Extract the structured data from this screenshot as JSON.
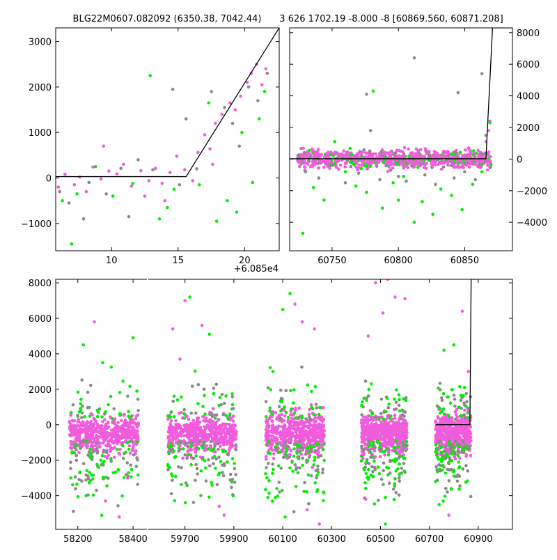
{
  "figure": {
    "top_left_title": "BLG22M0607.082092 (6350.38, 7042.44)",
    "top_right_title": "3 626 1702.19 -8.000 -8 [60869.560, 60871.208]",
    "x_offset_label": "+6.085e4"
  },
  "colors": {
    "magenta": "#f05cdc",
    "green": "#00ee00",
    "gray": "#888888",
    "model": "#000000"
  },
  "chart_data": [
    {
      "type": "scatter",
      "panel": "top-left zoom",
      "title": "BLG22M0607.082092 (6350.38, 7042.44)",
      "x_offset": 60850,
      "xlim": [
        5.8,
        22.6
      ],
      "ylim": [
        -1600,
        3300
      ],
      "xticks": [
        10,
        15,
        20
      ],
      "yticks": [
        -1000,
        0,
        1000,
        2000,
        3000
      ],
      "xtick_labels": [
        "10",
        "15",
        "20"
      ],
      "ytick_labels": [
        "−1000",
        "0",
        "1000",
        "2000",
        "3000"
      ],
      "model": {
        "x": [
          5.8,
          15.6,
          22.6
        ],
        "y": [
          30,
          30,
          3300
        ]
      },
      "series": [
        {
          "color": "magenta",
          "points": [
            [
              6.0,
              -200
            ],
            [
              6.5,
              80
            ],
            [
              7.2,
              -150
            ],
            [
              7.6,
              20
            ],
            [
              8.1,
              -300
            ],
            [
              8.6,
              240
            ],
            [
              9.2,
              -20
            ],
            [
              9.8,
              150
            ],
            [
              10.4,
              90
            ],
            [
              10.9,
              300
            ],
            [
              11.5,
              -180
            ],
            [
              12.2,
              160
            ],
            [
              12.8,
              -60
            ],
            [
              13.3,
              210
            ],
            [
              13.8,
              -120
            ],
            [
              14.4,
              120
            ],
            [
              14.9,
              480
            ],
            [
              15.5,
              180
            ],
            [
              16.1,
              -60
            ],
            [
              16.5,
              560
            ],
            [
              17.0,
              950
            ],
            [
              17.4,
              640
            ],
            [
              17.8,
              1200
            ],
            [
              18.3,
              1400
            ],
            [
              18.9,
              1650
            ],
            [
              19.3,
              1500
            ],
            [
              19.7,
              1800
            ],
            [
              20.2,
              2100
            ],
            [
              20.5,
              2300
            ],
            [
              20.9,
              2500
            ],
            [
              21.3,
              2050
            ],
            [
              21.6,
              2400
            ],
            [
              9.4,
              700
            ],
            [
              12.5,
              -400
            ],
            [
              14.0,
              -500
            ],
            [
              17.6,
              300
            ]
          ]
        },
        {
          "color": "green",
          "points": [
            [
              6.3,
              -500
            ],
            [
              7.4,
              -350
            ],
            [
              8.8,
              250
            ],
            [
              10.1,
              -400
            ],
            [
              11.6,
              -120
            ],
            [
              12.9,
              2250
            ],
            [
              13.6,
              -900
            ],
            [
              14.2,
              -650
            ],
            [
              14.7,
              -250
            ],
            [
              16.6,
              -150
            ],
            [
              17.3,
              1650
            ],
            [
              17.9,
              -950
            ],
            [
              18.7,
              -500
            ],
            [
              19.4,
              -750
            ],
            [
              19.8,
              1000
            ],
            [
              20.6,
              -100
            ],
            [
              21.1,
              1300
            ],
            [
              21.5,
              1900
            ],
            [
              7.0,
              -1450
            ]
          ]
        },
        {
          "color": "gray",
          "points": [
            [
              6.1,
              -300
            ],
            [
              6.8,
              -550
            ],
            [
              7.9,
              -900
            ],
            [
              8.3,
              -100
            ],
            [
              9.6,
              -350
            ],
            [
              10.7,
              210
            ],
            [
              11.3,
              -850
            ],
            [
              12.0,
              400
            ],
            [
              13.1,
              180
            ],
            [
              14.6,
              1950
            ],
            [
              15.1,
              -150
            ],
            [
              15.6,
              1300
            ],
            [
              16.4,
              200
            ],
            [
              17.5,
              1900
            ],
            [
              18.5,
              1550
            ],
            [
              19.1,
              1200
            ],
            [
              19.6,
              700
            ],
            [
              20.3,
              2000
            ],
            [
              21.0,
              1700
            ],
            [
              21.7,
              2300
            ]
          ]
        }
      ]
    },
    {
      "type": "scatter",
      "panel": "top-right zoom",
      "title": "3 626 1702.19 -8.000 -8 [60869.560, 60871.208]",
      "xlim": [
        60718,
        60886
      ],
      "ylim": [
        -5800,
        8300
      ],
      "xticks": [
        60750,
        60800,
        60850
      ],
      "yticks": [
        -4000,
        -2000,
        0,
        2000,
        4000,
        6000,
        8000
      ],
      "xtick_labels": [
        "60750",
        "60800",
        "60850"
      ],
      "ytick_labels": [
        "−4000",
        "−2000",
        "0",
        "2000",
        "4000",
        "6000",
        "8000"
      ],
      "model": {
        "x": [
          60718,
          60866,
          60871,
          60886
        ],
        "y": [
          20,
          20,
          8300,
          8300
        ]
      },
      "series": [
        {
          "color": "magenta",
          "points": [
            [
              60726,
              -200
            ],
            [
              60731,
              150
            ],
            [
              60737,
              -350
            ],
            [
              60742,
              280
            ],
            [
              60748,
              -150
            ],
            [
              60754,
              320
            ],
            [
              60760,
              -280
            ],
            [
              60766,
              140
            ],
            [
              60772,
              -400
            ],
            [
              60778,
              260
            ],
            [
              60784,
              -120
            ],
            [
              60790,
              380
            ],
            [
              60796,
              -300
            ],
            [
              60802,
              170
            ],
            [
              60808,
              -220
            ],
            [
              60814,
              300
            ],
            [
              60820,
              -380
            ],
            [
              60826,
              210
            ],
            [
              60832,
              -260
            ],
            [
              60838,
              340
            ],
            [
              60844,
              -150
            ],
            [
              60850,
              250
            ],
            [
              60856,
              -320
            ],
            [
              60862,
              180
            ],
            [
              60866,
              1100
            ],
            [
              60867,
              -200
            ],
            [
              60869,
              2400
            ],
            [
              60868,
              1800
            ],
            [
              60812,
              -500
            ],
            [
              60836,
              450
            ]
          ]
        },
        {
          "color": "green",
          "points": [
            [
              60728,
              -4700
            ],
            [
              60736,
              -1800
            ],
            [
              60744,
              -2600
            ],
            [
              60752,
              1100
            ],
            [
              60760,
              -800
            ],
            [
              60768,
              -1700
            ],
            [
              60776,
              -2100
            ],
            [
              60781,
              4300
            ],
            [
              60788,
              -3100
            ],
            [
              60796,
              -1500
            ],
            [
              60804,
              -1100
            ],
            [
              60812,
              -4000
            ],
            [
              60818,
              -2700
            ],
            [
              60826,
              -3500
            ],
            [
              60832,
              -1900
            ],
            [
              60840,
              -2300
            ],
            [
              60848,
              -3200
            ],
            [
              60856,
              -1600
            ],
            [
              60863,
              -800
            ],
            [
              60869,
              2300
            ],
            [
              60772,
              -600
            ],
            [
              60800,
              -2600
            ]
          ]
        },
        {
          "color": "gray",
          "points": [
            [
              60730,
              -800
            ],
            [
              60740,
              -1200
            ],
            [
              60750,
              -400
            ],
            [
              60760,
              -1500
            ],
            [
              60770,
              -900
            ],
            [
              60779,
              1800
            ],
            [
              60786,
              -1300
            ],
            [
              60794,
              -700
            ],
            [
              60800,
              -1100
            ],
            [
              60806,
              -1400
            ],
            [
              60812,
              6400
            ],
            [
              60820,
              -1000
            ],
            [
              60828,
              -1600
            ],
            [
              60834,
              -500
            ],
            [
              60842,
              -1200
            ],
            [
              60850,
              -800
            ],
            [
              60858,
              -1300
            ],
            [
              60863,
              5400
            ],
            [
              60866,
              1500
            ],
            [
              60776,
              4100
            ],
            [
              60845,
              4200
            ]
          ]
        }
      ]
    },
    {
      "type": "scatter",
      "panel": "bottom full light curve",
      "ylim": [
        -5900,
        8200
      ],
      "yticks": [
        -4000,
        -2000,
        0,
        2000,
        4000,
        6000,
        8000
      ],
      "ytick_labels": [
        "−4000",
        "−2000",
        "0",
        "2000",
        "4000",
        "6000",
        "8000"
      ],
      "segments": [
        {
          "xlim": [
            58120,
            58450
          ],
          "xticks": [
            58200,
            58400
          ],
          "xtick_labels": [
            "58200",
            "58400"
          ]
        },
        {
          "xlim": [
            59550,
            61040
          ],
          "xticks": [
            59700,
            59900,
            60100,
            60300,
            60500,
            60700,
            60900
          ],
          "xtick_labels": [
            "59700",
            "59900",
            "60100",
            "60300",
            "60500",
            "60700",
            "60900"
          ]
        }
      ],
      "seasons": [
        {
          "xr": [
            58170,
            58420
          ],
          "core": 500,
          "outliers": [
            [
              58220,
              4500
            ],
            [
              58260,
              5800
            ],
            [
              58290,
              3500
            ],
            [
              58300,
              -4300
            ],
            [
              58350,
              -5200
            ],
            [
              58400,
              4900
            ],
            [
              58230,
              -4000
            ],
            [
              58380,
              -3000
            ]
          ]
        },
        {
          "xr": [
            59630,
            59910
          ],
          "core": 500,
          "outliers": [
            [
              59650,
              5400
            ],
            [
              59700,
              7000
            ],
            [
              59720,
              7200
            ],
            [
              59770,
              5600
            ],
            [
              59800,
              5100
            ],
            [
              59840,
              -4600
            ],
            [
              59860,
              -5100
            ],
            [
              59680,
              3700
            ]
          ]
        },
        {
          "xr": [
            60030,
            60270
          ],
          "core": 600,
          "outliers": [
            [
              60060,
              3000
            ],
            [
              60100,
              6500
            ],
            [
              60130,
              7400
            ],
            [
              60150,
              6800
            ],
            [
              60180,
              5800
            ],
            [
              60230,
              5400
            ],
            [
              60070,
              -4100
            ],
            [
              60110,
              -5200
            ],
            [
              60200,
              -4800
            ],
            [
              60250,
              -5600
            ]
          ]
        },
        {
          "xr": [
            60420,
            60610
          ],
          "core": 550,
          "outliers": [
            [
              60450,
              5000
            ],
            [
              60480,
              8000
            ],
            [
              60510,
              6300
            ],
            [
              60530,
              8200
            ],
            [
              60560,
              7200
            ],
            [
              60600,
              7100
            ],
            [
              60440,
              -4200
            ],
            [
              60520,
              -5600
            ]
          ]
        },
        {
          "xr": [
            60725,
            60870
          ],
          "core": 550,
          "outliers": [
            [
              60760,
              4200
            ],
            [
              60800,
              4500
            ],
            [
              60835,
              6400
            ],
            [
              60860,
              3000
            ],
            [
              60740,
              -4500
            ],
            [
              60780,
              -5100
            ]
          ]
        }
      ],
      "model": {
        "x": [
          60725,
          60866,
          60871,
          60890
        ],
        "y": [
          0,
          0,
          8200,
          8200
        ]
      }
    }
  ]
}
